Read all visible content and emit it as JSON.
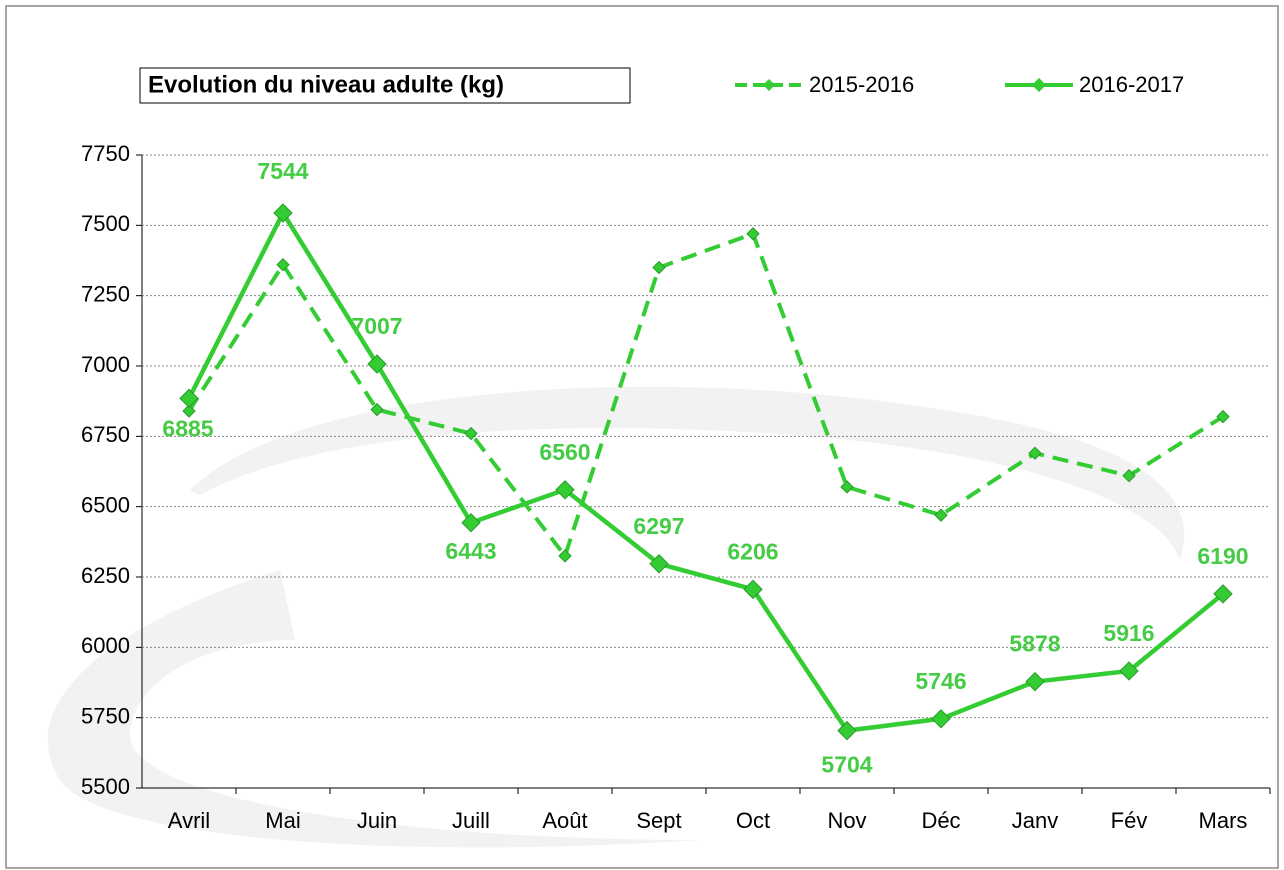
{
  "chart_data": {
    "type": "line",
    "title": "Evolution du niveau adulte (kg)",
    "categories": [
      "Avril",
      "Mai",
      "Juin",
      "Juill",
      "Août",
      "Sept",
      "Oct",
      "Nov",
      "Déc",
      "Janv",
      "Fév",
      "Mars"
    ],
    "series": [
      {
        "name": "2015-2016",
        "color": "#33cc33",
        "dashed": true,
        "values": [
          6840,
          7360,
          6845,
          6760,
          6325,
          7350,
          7470,
          6570,
          6470,
          6690,
          6610,
          6820
        ]
      },
      {
        "name": "2016-2017",
        "color": "#33cc33",
        "dashed": false,
        "values": [
          6885,
          7544,
          7007,
          6443,
          6560,
          6297,
          6206,
          5704,
          5746,
          5878,
          5916,
          6190
        ]
      }
    ],
    "ylim": [
      5500,
      7750
    ],
    "yticks": [
      5500,
      5750,
      6000,
      6250,
      6500,
      6750,
      7000,
      7250,
      7500,
      7750
    ],
    "grid": true
  }
}
